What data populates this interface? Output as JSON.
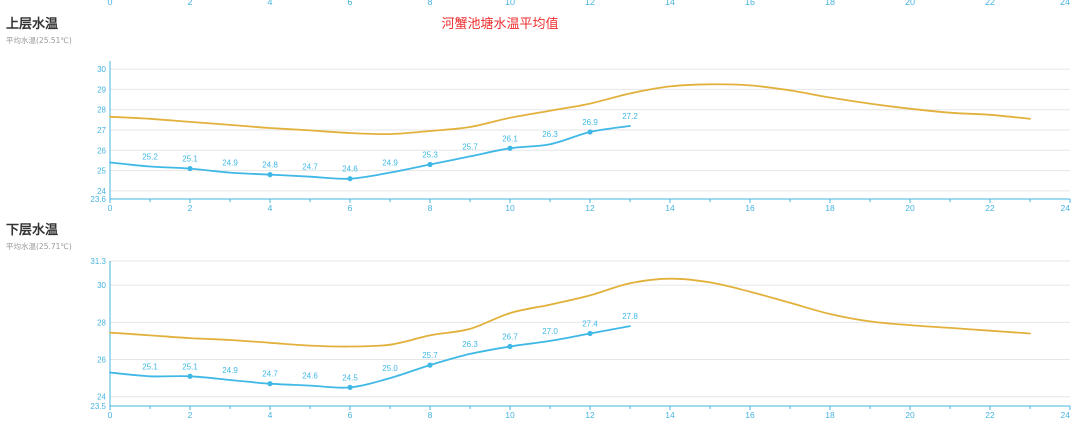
{
  "title": "河蟹池塘水温平均值",
  "colors": {
    "title": "#ee2f2f",
    "actual_series": "#40b8e6",
    "reference_series": "#e2b13c",
    "axis": "#46b4e0",
    "grid": "#e6e6e6",
    "x_tick_label": "#46b4e0",
    "y_tick_label": "#46b4e0"
  },
  "top_xaxis_ticks": [
    "0",
    "2",
    "4",
    "6",
    "8",
    "10",
    "12",
    "14",
    "16",
    "18",
    "20",
    "22",
    "24"
  ],
  "chart_data": [
    {
      "type": "line",
      "panel_title": "上层水温",
      "panel_subtitle": "平均水温(25.51℃)",
      "xlim": [
        0,
        24
      ],
      "ylim": [
        23.6,
        30.4
      ],
      "x_ticks": [
        0,
        2,
        4,
        6,
        8,
        10,
        12,
        14,
        16,
        18,
        20,
        22,
        24
      ],
      "x_tick_labels": [
        "0",
        "2",
        "4",
        "6",
        "8",
        "10",
        "12",
        "14",
        "16",
        "18",
        "20",
        "22",
        "24"
      ],
      "y_ticks": [
        23.6,
        24,
        25,
        26,
        27,
        28,
        29,
        30
      ],
      "y_tick_labels": [
        "23.6",
        "24",
        "25",
        "26",
        "27",
        "28",
        "29",
        "30"
      ],
      "grid": true,
      "series": [
        {
          "role": "reference",
          "x": [
            0,
            1,
            2,
            3,
            4,
            5,
            6,
            7,
            8,
            9,
            10,
            11,
            12,
            13,
            14,
            15,
            16,
            17,
            18,
            19,
            20,
            21,
            22,
            23
          ],
          "values": [
            27.65,
            27.55,
            27.4,
            27.25,
            27.1,
            26.98,
            26.85,
            26.8,
            26.95,
            27.15,
            27.6,
            27.95,
            28.3,
            28.8,
            29.15,
            29.25,
            29.2,
            28.95,
            28.6,
            28.3,
            28.05,
            27.85,
            27.75,
            27.55
          ]
        },
        {
          "role": "actual",
          "x": [
            0,
            1,
            2,
            3,
            4,
            5,
            6,
            7,
            8,
            9,
            10,
            11,
            12,
            13
          ],
          "values": [
            25.4,
            25.2,
            25.1,
            24.9,
            24.8,
            24.7,
            24.6,
            24.9,
            25.3,
            25.7,
            26.1,
            26.3,
            26.9,
            27.2
          ],
          "labels": [
            "",
            "25.2",
            "25.1",
            "24.9",
            "24.8",
            "24.7",
            "24.6",
            "24.9",
            "25.3",
            "25.7",
            "26.1",
            "26.3",
            "26.9",
            "27.2"
          ],
          "markers_at": [
            2,
            4,
            6,
            8,
            10,
            12
          ]
        }
      ]
    },
    {
      "type": "line",
      "panel_title": "下层水温",
      "panel_subtitle": "平均水温(25.71℃)",
      "xlim": [
        0,
        24
      ],
      "ylim": [
        23.5,
        31.3
      ],
      "x_ticks": [
        0,
        2,
        4,
        6,
        8,
        10,
        12,
        14,
        16,
        18,
        20,
        22,
        24
      ],
      "x_tick_labels": [
        "0",
        "2",
        "4",
        "6",
        "8",
        "10",
        "12",
        "14",
        "16",
        "18",
        "20",
        "22",
        "24"
      ],
      "y_ticks": [
        23.5,
        24,
        26,
        28,
        30,
        31.3
      ],
      "y_tick_labels": [
        "23.5",
        "24",
        "26",
        "28",
        "30",
        "31.3"
      ],
      "grid": true,
      "series": [
        {
          "role": "reference",
          "x": [
            0,
            1,
            2,
            3,
            4,
            5,
            6,
            7,
            8,
            9,
            10,
            11,
            12,
            13,
            14,
            15,
            16,
            17,
            18,
            19,
            20,
            21,
            22,
            23
          ],
          "values": [
            27.45,
            27.3,
            27.15,
            27.05,
            26.9,
            26.75,
            26.7,
            26.8,
            27.3,
            27.65,
            28.5,
            28.95,
            29.45,
            30.1,
            30.35,
            30.15,
            29.65,
            29.05,
            28.45,
            28.05,
            27.85,
            27.7,
            27.55,
            27.4
          ]
        },
        {
          "role": "actual",
          "x": [
            0,
            1,
            2,
            3,
            4,
            5,
            6,
            7,
            8,
            9,
            10,
            11,
            12,
            13
          ],
          "values": [
            25.3,
            25.1,
            25.1,
            24.9,
            24.7,
            24.6,
            24.5,
            25.0,
            25.7,
            26.3,
            26.7,
            27.0,
            27.4,
            27.8
          ],
          "labels": [
            "",
            "25.1",
            "25.1",
            "24.9",
            "24.7",
            "24.6",
            "24.5",
            "25.0",
            "25.7",
            "26.3",
            "26.7",
            "27.0",
            "27.4",
            "27.8"
          ],
          "markers_at": [
            2,
            4,
            6,
            8,
            10,
            12
          ]
        }
      ]
    }
  ]
}
